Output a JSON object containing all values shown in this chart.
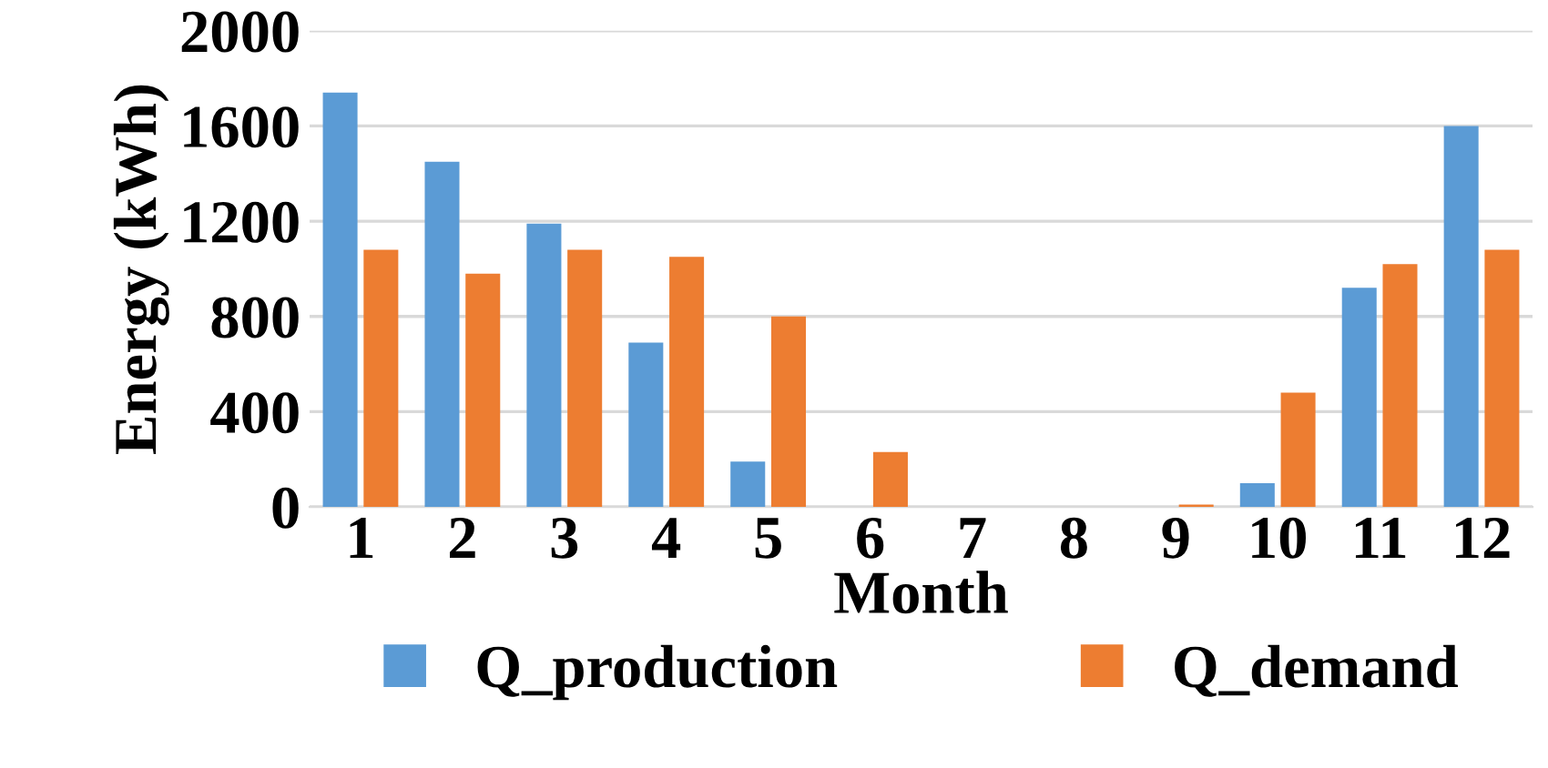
{
  "chart_data": {
    "type": "bar",
    "xlabel": "Month",
    "ylabel": "Energy (kWh)",
    "categories": [
      "1",
      "2",
      "3",
      "4",
      "5",
      "6",
      "7",
      "8",
      "9",
      "10",
      "11",
      "12"
    ],
    "series": [
      {
        "name": "Q_production",
        "color": "#5b9bd5",
        "values": [
          1740,
          1450,
          1190,
          690,
          190,
          0,
          0,
          0,
          0,
          100,
          920,
          1600
        ]
      },
      {
        "name": "Q_demand",
        "color": "#ed7d31",
        "values": [
          1080,
          980,
          1080,
          1050,
          800,
          230,
          0,
          0,
          10,
          480,
          1020,
          1080
        ]
      }
    ],
    "ylim": [
      0,
      2000
    ],
    "yticks": [
      0,
      400,
      800,
      1200,
      1600,
      2000
    ],
    "grid": "y",
    "legend": "bottom"
  }
}
